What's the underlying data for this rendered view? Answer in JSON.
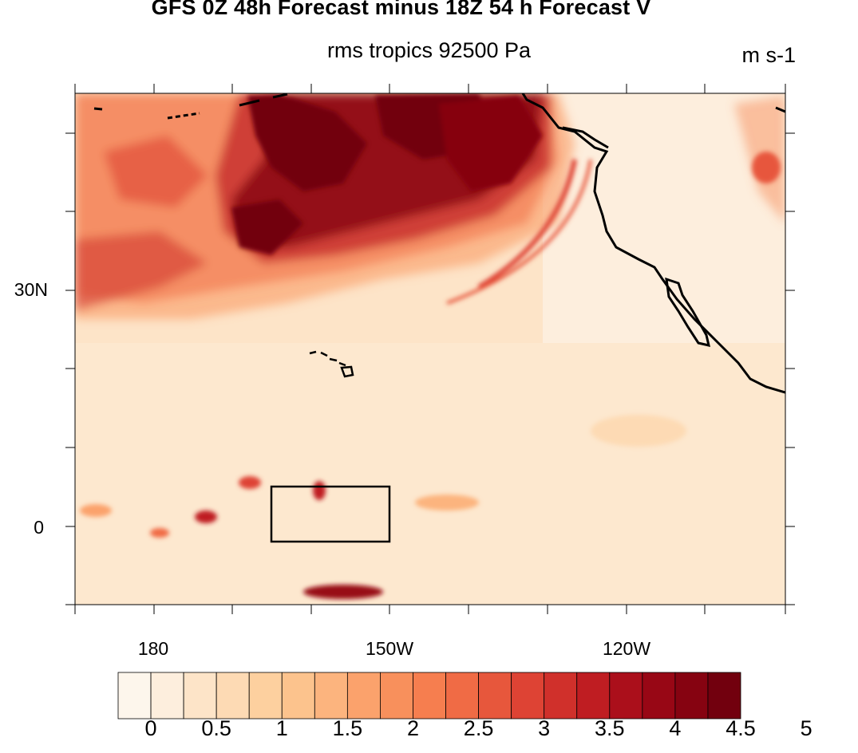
{
  "title": "GFS 0Z 48h Forecast minus 18Z 54 h Forecast V",
  "subtitle": "rms tropics 92500 Pa",
  "units": "m s-1",
  "map": {
    "lat_labels": [
      "30N",
      "0"
    ],
    "lon_labels": [
      "180",
      "150W",
      "120W"
    ],
    "lon_range": [
      -190,
      -100
    ],
    "lat_range": [
      -10,
      55
    ],
    "box": {
      "lon": [
        -165,
        -150
      ],
      "lat": [
        -2,
        5
      ]
    },
    "islands": "Hawaii",
    "coastline": "California / Baja California"
  },
  "colorbar": {
    "labels": [
      "0",
      "0.5",
      "1",
      "1.5",
      "2",
      "2.5",
      "3",
      "3.5",
      "4",
      "4.5",
      "5"
    ],
    "colors": [
      "#fdf6ec",
      "#fdeedd",
      "#fde4c8",
      "#fddab4",
      "#fdd09f",
      "#fcc38d",
      "#fcb47e",
      "#fba26c",
      "#f8905c",
      "#f67e4f",
      "#f06b45",
      "#e7573c",
      "#de4334",
      "#d0302b",
      "#bf1d22",
      "#ab0f1b",
      "#980715",
      "#860311",
      "#72000e"
    ]
  }
}
